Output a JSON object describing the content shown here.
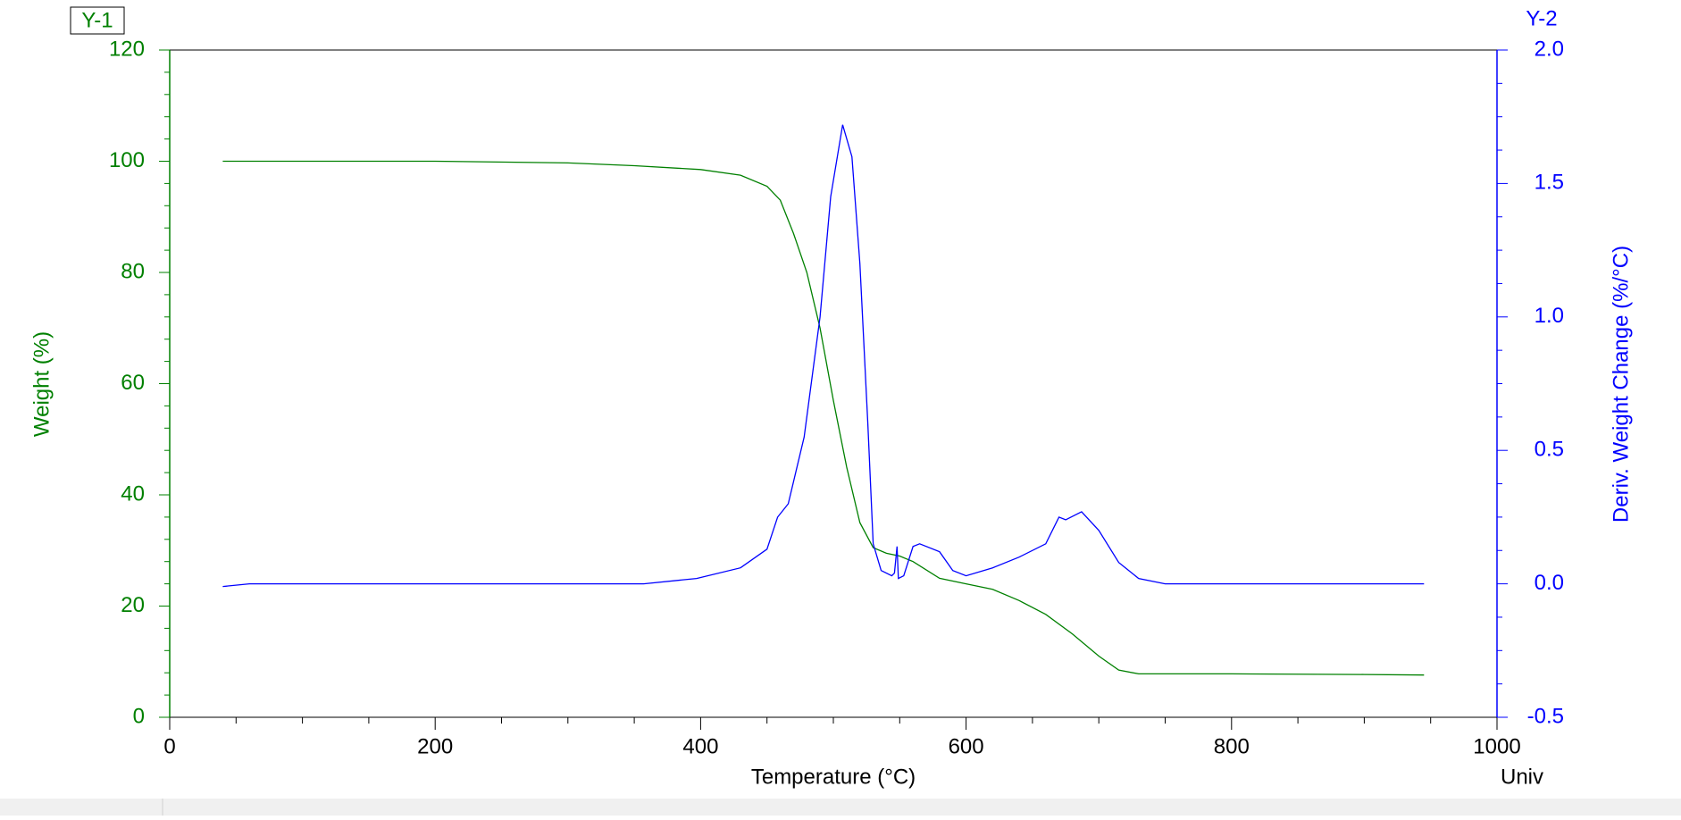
{
  "chart_data": {
    "type": "line",
    "corner_labels": [
      "Y-1",
      "Y-2"
    ],
    "footer": "Univ",
    "x_label": "Temperature (°C)",
    "y_label": "Weight (%)",
    "y2_label": "Deriv. Weight Change (%/°C)",
    "xlim": [
      0,
      1000
    ],
    "xticks": [
      0,
      200,
      400,
      600,
      800,
      1000
    ],
    "ylim": [
      0,
      120
    ],
    "yticks": [
      0,
      20,
      40,
      60,
      80,
      100,
      120
    ],
    "y2lim": [
      -0.5,
      2.0
    ],
    "y2ticks": [
      -0.5,
      {
        "value": 0,
        "label": "0.0"
      },
      0.5,
      {
        "value": 1,
        "label": "1.0"
      },
      1.5,
      {
        "value": 2,
        "label": "2.0"
      }
    ],
    "series": [
      {
        "name": "Weight",
        "color": "#008000",
        "x": [
          40,
          100,
          200,
          300,
          350,
          400,
          430,
          450,
          460,
          470,
          480,
          490,
          500,
          510,
          520,
          530,
          540,
          550,
          560,
          580,
          600,
          620,
          640,
          660,
          680,
          700,
          715,
          730,
          800,
          900,
          945
        ],
        "values": [
          100,
          100,
          100,
          99.7,
          99.2,
          98.5,
          97.5,
          95.5,
          93,
          87,
          80,
          70,
          57,
          45,
          35,
          30.5,
          29.5,
          29,
          28,
          25,
          24,
          23,
          21,
          18.5,
          15,
          11,
          8.5,
          7.8,
          7.8,
          7.7,
          7.6
        ]
      },
      {
        "name": "Deriv. Weight Change",
        "color": "#0000ff",
        "axis": "y2",
        "x": [
          40,
          60,
          200,
          357,
          397,
          430,
          450,
          458,
          466,
          478,
          490,
          498,
          507,
          514,
          520,
          526,
          530,
          536,
          544,
          546,
          548,
          549,
          553,
          560,
          565,
          580,
          590,
          600,
          620,
          640,
          660,
          670,
          675,
          687,
          700,
          715,
          730,
          750,
          850,
          945
        ],
        "values": [
          -0.01,
          0,
          0,
          0,
          0.02,
          0.06,
          0.13,
          0.25,
          0.3,
          0.55,
          1.0,
          1.45,
          1.72,
          1.6,
          1.2,
          0.6,
          0.15,
          0.05,
          0.03,
          0.04,
          0.14,
          0.02,
          0.03,
          0.14,
          0.15,
          0.12,
          0.05,
          0.03,
          0.06,
          0.1,
          0.15,
          0.25,
          0.24,
          0.27,
          0.2,
          0.08,
          0.02,
          0,
          0,
          0
        ]
      }
    ]
  }
}
